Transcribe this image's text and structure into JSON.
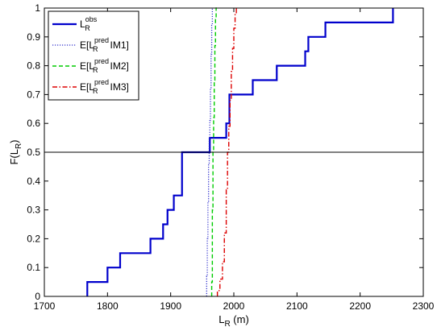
{
  "chart_data": {
    "type": "line",
    "title": "",
    "xlabel": "L_R (m)",
    "ylabel": "F(L_R)",
    "xlim": [
      1700,
      2300
    ],
    "ylim": [
      0,
      1
    ],
    "xticks": [
      1700,
      1800,
      1900,
      2000,
      2100,
      2200,
      2300
    ],
    "yticks": [
      0,
      0.1,
      0.2,
      0.3,
      0.4,
      0.5,
      0.6,
      0.7,
      0.8,
      0.9,
      1
    ],
    "grid": false,
    "legend_position": "top-left",
    "reference_line": {
      "y": 0.5,
      "color": "#000000"
    },
    "series": [
      {
        "legend": {
          "main": "L",
          "sub": "R",
          "sup": "obs",
          "tail": ""
        },
        "color": "#0000cc",
        "style": "solid",
        "width": 2.2,
        "x": [
          1768,
          1768,
          1800,
          1800,
          1820,
          1820,
          1868,
          1868,
          1888,
          1888,
          1895,
          1895,
          1905,
          1905,
          1918,
          1918,
          1962,
          1962,
          1988,
          1988,
          1993,
          1993,
          2030,
          2030,
          2068,
          2068,
          2113,
          2113,
          2118,
          2118,
          2145,
          2145,
          2252,
          2252
        ],
        "y": [
          0,
          0.05,
          0.05,
          0.1,
          0.1,
          0.15,
          0.15,
          0.2,
          0.2,
          0.25,
          0.25,
          0.3,
          0.3,
          0.35,
          0.35,
          0.5,
          0.5,
          0.55,
          0.55,
          0.6,
          0.6,
          0.7,
          0.7,
          0.75,
          0.75,
          0.8,
          0.8,
          0.85,
          0.85,
          0.9,
          0.9,
          0.95,
          0.95,
          1.0
        ]
      },
      {
        "legend": {
          "main": "E[L",
          "sub": "R",
          "sup": "pred",
          "tail": "IM1]"
        },
        "color": "#3333cc",
        "style": "dotted",
        "width": 1.3,
        "x": [
          1957,
          1957,
          1958,
          1958,
          1959,
          1959,
          1960,
          1960,
          1961,
          1961,
          1962,
          1962,
          1963,
          1963,
          1964,
          1964,
          1965,
          1965,
          1966,
          1966,
          1967
        ],
        "y": [
          0,
          0.07,
          0.07,
          0.2,
          0.2,
          0.33,
          0.33,
          0.46,
          0.46,
          0.55,
          0.55,
          0.61,
          0.61,
          0.72,
          0.72,
          0.84,
          0.84,
          0.94,
          0.94,
          1.0,
          1.0
        ]
      },
      {
        "legend": {
          "main": "E[L",
          "sub": "R",
          "sup": "pred",
          "tail": "IM2]"
        },
        "color": "#00cc00",
        "style": "dashed",
        "width": 1.4,
        "x": [
          1965,
          1965,
          1966,
          1966,
          1967,
          1967,
          1968,
          1968,
          1969,
          1969,
          1970,
          1970,
          1971,
          1971,
          1972,
          1972,
          1973
        ],
        "y": [
          0,
          0.05,
          0.05,
          0.3,
          0.3,
          0.5,
          0.5,
          0.62,
          0.62,
          0.75,
          0.75,
          0.87,
          0.87,
          0.96,
          0.96,
          1.0,
          1.0
        ]
      },
      {
        "legend": {
          "main": "E[L",
          "sub": "R",
          "sup": "pred",
          "tail": "IM3]"
        },
        "color": "#dd0000",
        "style": "dashdot",
        "width": 1.4,
        "x": [
          1974,
          1974,
          1978,
          1978,
          1982,
          1982,
          1985,
          1985,
          1988,
          1988,
          1990,
          1990,
          1992,
          1992,
          1994,
          1994,
          1996,
          1996,
          1998,
          1998,
          2000,
          2000,
          2002,
          2002,
          2004,
          2004,
          2006
        ],
        "y": [
          0,
          0.02,
          0.02,
          0.06,
          0.06,
          0.12,
          0.12,
          0.22,
          0.22,
          0.37,
          0.37,
          0.5,
          0.5,
          0.59,
          0.59,
          0.68,
          0.68,
          0.78,
          0.78,
          0.86,
          0.86,
          0.93,
          0.93,
          0.98,
          0.98,
          1.0,
          1.0
        ]
      }
    ]
  }
}
